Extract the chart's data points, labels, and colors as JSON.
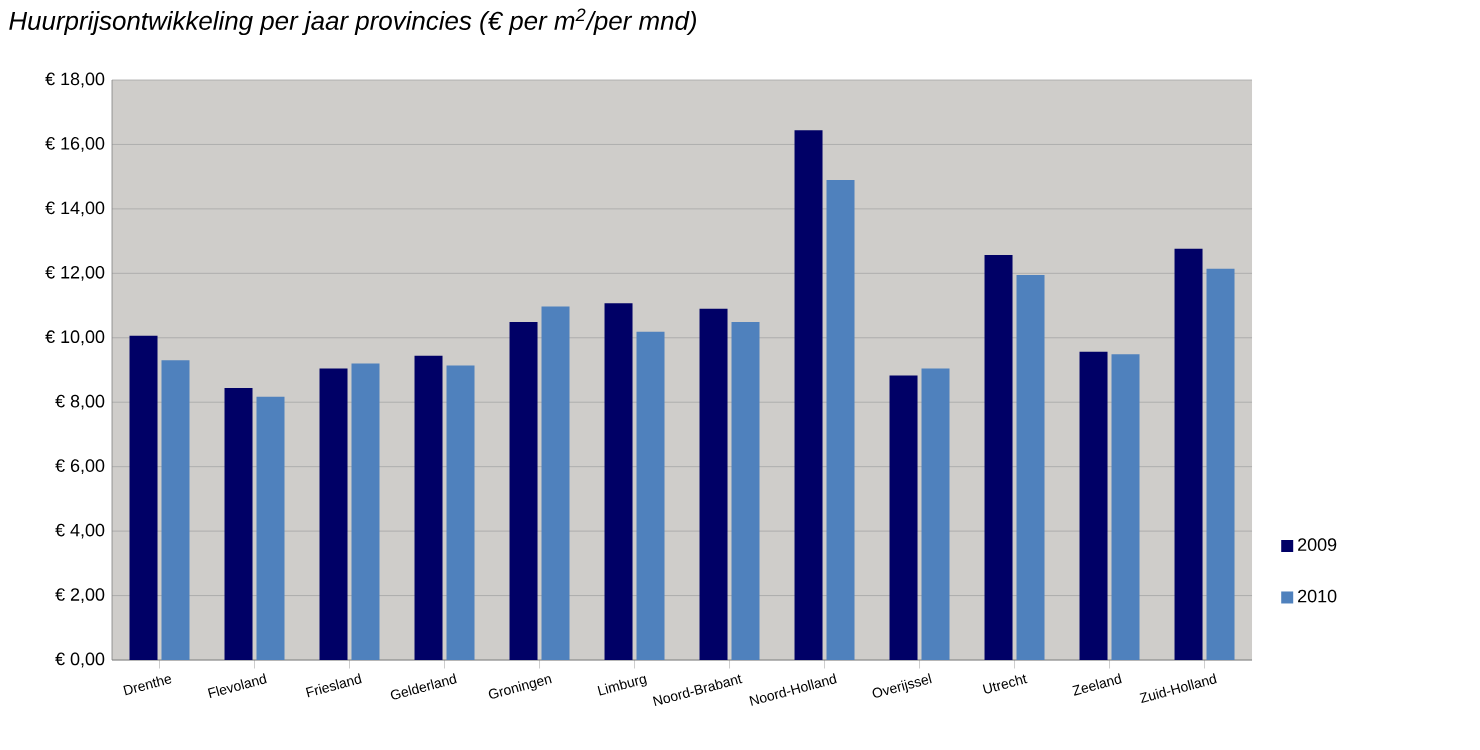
{
  "chart_data": {
    "type": "bar",
    "title": "Huurprijsontwikkeling  per jaar provincies (€ per m$^{2}$/per mnd)",
    "categories": [
      "Drenthe",
      "Flevoland",
      "Friesland",
      "Gelderland",
      "Groningen",
      "Limburg",
      "Noord-Brabant",
      "Noord-Holland",
      "Overijssel",
      "Utrecht",
      "Zeeland",
      "Zuid-Holland"
    ],
    "series": [
      {
        "name": "2009",
        "color": "#000066",
        "values": [
          10.06,
          8.44,
          9.05,
          9.44,
          10.49,
          11.07,
          10.9,
          16.44,
          8.83,
          12.57,
          9.57,
          12.76
        ]
      },
      {
        "name": "2010",
        "color": "#4f81bd",
        "values": [
          9.3,
          8.17,
          9.2,
          9.14,
          10.97,
          10.19,
          10.49,
          14.9,
          9.05,
          11.95,
          9.49,
          12.14
        ]
      }
    ],
    "ylim": [
      0,
      18
    ],
    "yticks": [
      {
        "value": 0,
        "label": "€ 0,00"
      },
      {
        "value": 2,
        "label": "€ 2,00"
      },
      {
        "value": 4,
        "label": "€ 4,00"
      },
      {
        "value": 6,
        "label": "€ 6,00"
      },
      {
        "value": 8,
        "label": "€ 8,00"
      },
      {
        "value": 10,
        "label": "€ 10,00"
      },
      {
        "value": 12,
        "label": "€ 12,00"
      },
      {
        "value": 14,
        "label": "€ 14,00"
      },
      {
        "value": 16,
        "label": "€ 16,00"
      },
      {
        "value": 18,
        "label": "€ 18,00"
      }
    ],
    "grid": "y",
    "legend": "right"
  }
}
